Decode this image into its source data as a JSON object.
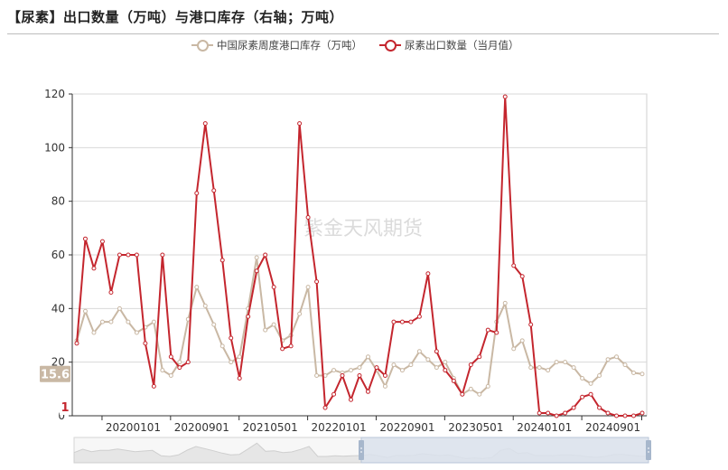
{
  "title": "【尿素】出口数量（万吨）与港口库存（右轴；万吨）",
  "watermark": "紫金天风期货",
  "colors": {
    "inventory": "#c9b8a4",
    "export": "#c4262e",
    "axis": "#333333",
    "grid": "#d9d9d9",
    "slider_fill": "#dbe2ec",
    "slider_handle": "#a7b7cc",
    "end_label_inventory_bg": "#c9b8a4"
  },
  "chart_data": {
    "type": "line",
    "y_ticks": [
      "0",
      "20",
      "40",
      "60",
      "80",
      "100",
      "120"
    ],
    "ylim": [
      0,
      120
    ],
    "x_tick_labels": [
      "20200101",
      "20200901",
      "20210501",
      "20220101",
      "20220901",
      "20230501",
      "20240101",
      "20240901"
    ],
    "x_tick_index": [
      3,
      11,
      19,
      27,
      35,
      43,
      51,
      59
    ],
    "grid": true,
    "legend_position": "top-center",
    "series": [
      {
        "name": "中国尿素周度港口库存（万吨）",
        "key": "inventory",
        "values": [
          28,
          39,
          31,
          35,
          35,
          40,
          35,
          31,
          33,
          35,
          17,
          15,
          20,
          36,
          48,
          41,
          34,
          26,
          20,
          22,
          40,
          59,
          32,
          34,
          28,
          30,
          38,
          48,
          15,
          15,
          17,
          16,
          17,
          18,
          22,
          17,
          11,
          19,
          17,
          19,
          24,
          21,
          18,
          20,
          14,
          8,
          10,
          8,
          11,
          35,
          42,
          25,
          28,
          18,
          18,
          17,
          20,
          20,
          18,
          14,
          12,
          15,
          21,
          22,
          19,
          16,
          15.6
        ],
        "end_label": "15.6"
      },
      {
        "name": "尿素出口数量（当月值）",
        "key": "export",
        "values": [
          27,
          66,
          55,
          65,
          46,
          60,
          60,
          60,
          27,
          11,
          60,
          22,
          18,
          20,
          83,
          109,
          84,
          58,
          29,
          14,
          37,
          54,
          60,
          48,
          25,
          26,
          109,
          74,
          50,
          3,
          8,
          15,
          6,
          15,
          9,
          18,
          15,
          35,
          35,
          35,
          37,
          53,
          24,
          17,
          13,
          8,
          19,
          22,
          32,
          31,
          119,
          56,
          52,
          34,
          1,
          1,
          0,
          1,
          3,
          7,
          8,
          3,
          1,
          0,
          0,
          0,
          1
        ],
        "end_label": "1"
      }
    ]
  }
}
